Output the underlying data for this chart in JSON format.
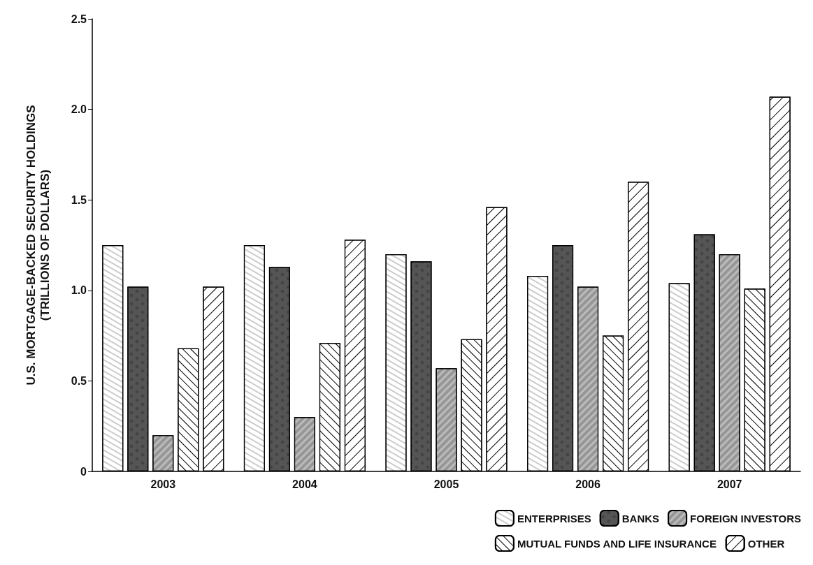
{
  "chart_data": {
    "type": "bar",
    "ylabel": "U.S. MORTGAGE-BACKED SECURITY HOLDINGS\n(TRILLIONS OF DOLLARS)",
    "categories": [
      "2003",
      "2004",
      "2005",
      "2006",
      "2007"
    ],
    "series": [
      {
        "name": "ENTERPRISES",
        "color": "#ffffff",
        "values": [
          1.25,
          1.25,
          1.2,
          1.08,
          1.04
        ]
      },
      {
        "name": "BANKS",
        "color": "#555555",
        "values": [
          1.02,
          1.13,
          1.16,
          1.25,
          1.31
        ]
      },
      {
        "name": "FOREIGN INVESTORS",
        "color": "#bbbbbb",
        "values": [
          0.2,
          0.3,
          0.57,
          1.02,
          1.2
        ]
      },
      {
        "name": "MUTUAL FUNDS AND LIFE INSURANCE",
        "color": "#ffffff",
        "values": [
          0.68,
          0.71,
          0.73,
          0.75,
          1.01
        ]
      },
      {
        "name": "OTHER",
        "color": "#ffffff",
        "values": [
          1.02,
          1.28,
          1.46,
          1.6,
          2.07
        ]
      }
    ],
    "ylim": [
      0,
      2.5
    ],
    "yticks": [
      0,
      0.5,
      {
        "value": 1,
        "label": "1.0"
      },
      1.5,
      {
        "value": 2,
        "label": "2.0"
      },
      2.5
    ],
    "grid": false,
    "legend": "bottom right"
  }
}
